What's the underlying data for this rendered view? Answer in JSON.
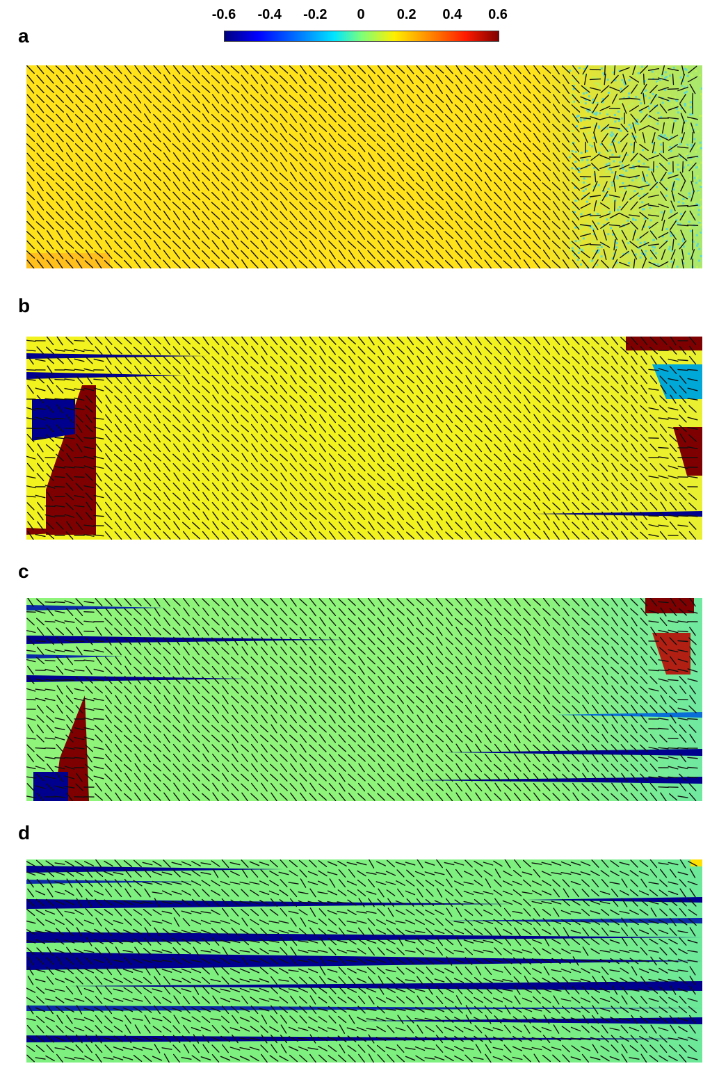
{
  "colorbar": {
    "ticks": [
      "-0.6",
      "-0.4",
      "-0.2",
      "0",
      "0.2",
      "0.4",
      "0.6"
    ],
    "colors": [
      "#00007f",
      "#0000ff",
      "#007fff",
      "#00e5ff",
      "#7dff7a",
      "#ffef00",
      "#ff7f00",
      "#ff1a00",
      "#7f0000"
    ]
  },
  "panels": [
    {
      "label": "a",
      "base_color": "#ffe21a"
    },
    {
      "label": "b",
      "base_color": "#f2f21e"
    },
    {
      "label": "c",
      "base_color": "#8ff57a"
    },
    {
      "label": "d",
      "base_color": "#7ef07f"
    }
  ]
}
